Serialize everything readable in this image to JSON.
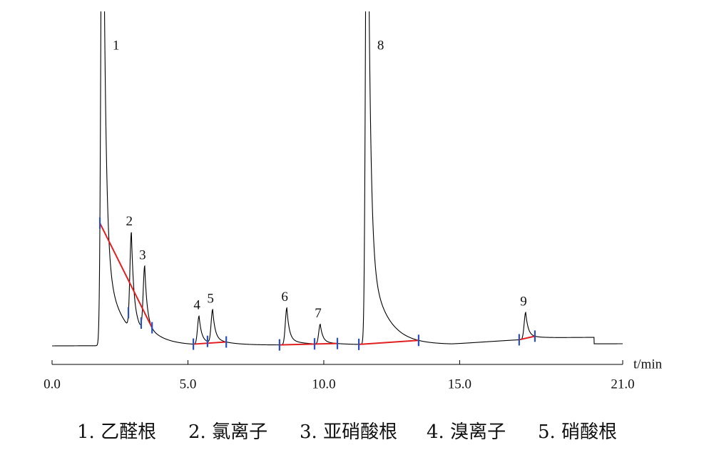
{
  "chart_data": {
    "type": "chromatogram",
    "x_label": "t/min",
    "xlim": [
      0,
      21
    ],
    "xticks": [
      {
        "value": 0,
        "label": "0.0"
      },
      {
        "value": 5,
        "label": "5.0"
      },
      {
        "value": 10,
        "label": "10.0"
      },
      {
        "value": 15,
        "label": "15.0"
      },
      {
        "value": 21,
        "label": "21.0"
      }
    ],
    "ylim": [
      0,
      470
    ],
    "peaks": {
      "labels": [
        "1",
        "2",
        "3",
        "4",
        "5",
        "6",
        "7",
        "8",
        "9"
      ],
      "times": [
        1.86,
        2.92,
        3.41,
        5.41,
        5.91,
        8.64,
        9.87,
        11.6,
        17.43
      ],
      "heights": [
        900,
        136,
        92,
        40,
        47,
        52,
        28,
        900,
        38
      ]
    },
    "integration_markers": [
      1.76,
      2.81,
      3.28,
      3.68,
      5.2,
      5.72,
      6.41,
      8.37,
      9.66,
      10.5,
      11.29,
      13.49,
      17.19,
      17.77
    ],
    "baseline_segments": [
      [
        1.76,
        3.68
      ],
      [
        5.2,
        6.41
      ],
      [
        8.37,
        10.5
      ],
      [
        11.29,
        13.49
      ],
      [
        17.19,
        17.77
      ]
    ],
    "color": "#000000",
    "baseline_color": "#e02020",
    "marker_color": "#2b4fbf",
    "legend": [
      "1. 乙醛根",
      "2. 氯离子",
      "3. 亚硝酸根",
      "4. 溴离子",
      "5. 硝酸根"
    ]
  }
}
